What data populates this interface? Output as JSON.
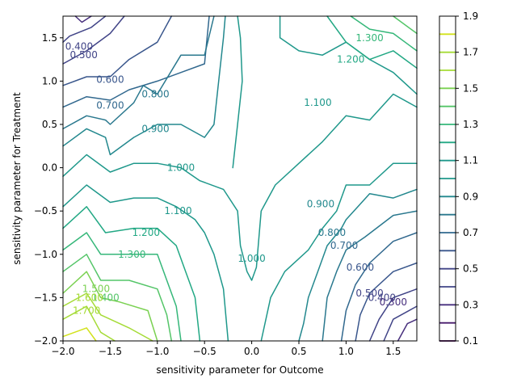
{
  "chart_data": {
    "type": "contour",
    "xlabel": "sensitivity parameter for Outcome",
    "ylabel": "sensitivity parameter for Treatment",
    "xlim": [
      -2.0,
      1.75
    ],
    "ylim": [
      -2.0,
      1.75
    ],
    "x_ticks": [
      {
        "value": -2.0,
        "label": "−2.0"
      },
      {
        "value": -1.5,
        "label": "−1.5"
      },
      {
        "value": -1.0,
        "label": "−1.0"
      },
      {
        "value": -0.5,
        "label": "−0.5"
      },
      {
        "value": 0.0,
        "label": "0.0"
      },
      {
        "value": 0.5,
        "label": "0.5"
      },
      {
        "value": 1.0,
        "label": "1.0"
      },
      {
        "value": 1.5,
        "label": "1.5"
      }
    ],
    "y_ticks": [
      {
        "value": -2.0,
        "label": "−2.0"
      },
      {
        "value": -1.5,
        "label": "−1.5"
      },
      {
        "value": -1.0,
        "label": "−1.0"
      },
      {
        "value": -0.5,
        "label": "−0.5"
      },
      {
        "value": 0.0,
        "label": "0.0"
      },
      {
        "value": 0.5,
        "label": "0.5"
      },
      {
        "value": 1.0,
        "label": "1.0"
      },
      {
        "value": 1.5,
        "label": "1.5"
      }
    ],
    "colormap": "viridis",
    "levels": [
      0.1,
      0.2,
      0.3,
      0.4,
      0.5,
      0.6,
      0.7,
      0.8,
      0.9,
      1.0,
      1.1,
      1.2,
      1.3,
      1.4,
      1.5,
      1.6,
      1.7,
      1.8,
      1.9
    ],
    "level_colors": [
      "#440154",
      "#481a6c",
      "#472f7d",
      "#414487",
      "#39568c",
      "#31688e",
      "#2a788e",
      "#23888e",
      "#1f988b",
      "#22a884",
      "#35b779",
      "#54c568",
      "#7ad151",
      "#a5db36",
      "#d2e21b",
      "#fde725"
    ],
    "colorbar_ticks": [
      {
        "value": 0.1,
        "label": "0.1"
      },
      {
        "value": 0.3,
        "label": "0.3"
      },
      {
        "value": 0.5,
        "label": "0.5"
      },
      {
        "value": 0.7,
        "label": "0.7"
      },
      {
        "value": 0.9,
        "label": "0.9"
      },
      {
        "value": 1.1,
        "label": "1.1"
      },
      {
        "value": 1.3,
        "label": "1.3"
      },
      {
        "value": 1.5,
        "label": "1.5"
      },
      {
        "value": 1.7,
        "label": "1.7"
      },
      {
        "value": 1.9,
        "label": "1.9"
      }
    ],
    "contour_labels": [
      {
        "text": "0.400",
        "x": -1.83,
        "y": 1.4,
        "level": 0.4
      },
      {
        "text": "0.500",
        "x": -1.78,
        "y": 1.3,
        "level": 0.5
      },
      {
        "text": "0.600",
        "x": -1.5,
        "y": 1.02,
        "level": 0.6
      },
      {
        "text": "0.700",
        "x": -1.5,
        "y": 0.72,
        "level": 0.7
      },
      {
        "text": "0.800",
        "x": -1.02,
        "y": 0.85,
        "level": 0.8
      },
      {
        "text": "0.900",
        "x": -1.02,
        "y": 0.45,
        "level": 0.9
      },
      {
        "text": "1.000",
        "x": -0.75,
        "y": 0.0,
        "level": 1.0
      },
      {
        "text": "1.100",
        "x": -0.78,
        "y": -0.5,
        "level": 1.1
      },
      {
        "text": "1.200",
        "x": -1.12,
        "y": -0.75,
        "level": 1.2
      },
      {
        "text": "1.300",
        "x": -1.27,
        "y": -1.0,
        "level": 1.3
      },
      {
        "text": "1.400",
        "x": -1.55,
        "y": -1.5,
        "level": 1.4
      },
      {
        "text": "1.500",
        "x": -1.65,
        "y": -1.4,
        "level": 1.5
      },
      {
        "text": "1.600",
        "x": -1.72,
        "y": -1.5,
        "level": 1.6
      },
      {
        "text": "1.700",
        "x": -1.75,
        "y": -1.65,
        "level": 1.7
      },
      {
        "text": "1.000",
        "x": 0.0,
        "y": -1.05,
        "level": 1.0
      },
      {
        "text": "0.900",
        "x": 0.73,
        "y": -0.42,
        "level": 0.9
      },
      {
        "text": "0.800",
        "x": 0.85,
        "y": -0.75,
        "level": 0.8
      },
      {
        "text": "0.700",
        "x": 0.98,
        "y": -0.9,
        "level": 0.7
      },
      {
        "text": "0.600",
        "x": 1.15,
        "y": -1.15,
        "level": 0.6
      },
      {
        "text": "0.500",
        "x": 1.25,
        "y": -1.45,
        "level": 0.5
      },
      {
        "text": "0.400",
        "x": 1.38,
        "y": -1.5,
        "level": 0.4
      },
      {
        "text": "0.300",
        "x": 1.5,
        "y": -1.55,
        "level": 0.3
      },
      {
        "text": "1.100",
        "x": 0.7,
        "y": 0.75,
        "level": 1.1
      },
      {
        "text": "1.200",
        "x": 1.05,
        "y": 1.25,
        "level": 1.2
      },
      {
        "text": "1.300",
        "x": 1.25,
        "y": 1.5,
        "level": 1.3
      }
    ],
    "contours": [
      {
        "level": 0.3,
        "points": [
          [
            -1.87,
            1.75
          ],
          [
            -1.8,
            1.68
          ],
          [
            -1.7,
            1.75
          ]
        ]
      },
      {
        "level": 0.4,
        "points": [
          [
            -2.0,
            1.45
          ],
          [
            -1.93,
            1.52
          ],
          [
            -1.7,
            1.62
          ],
          [
            -1.55,
            1.75
          ]
        ]
      },
      {
        "level": 0.5,
        "points": [
          [
            -2.0,
            1.2
          ],
          [
            -1.75,
            1.35
          ],
          [
            -1.5,
            1.55
          ],
          [
            -1.35,
            1.75
          ]
        ]
      },
      {
        "level": 0.6,
        "points": [
          [
            -2.0,
            0.95
          ],
          [
            -1.75,
            1.05
          ],
          [
            -1.5,
            1.05
          ],
          [
            -1.3,
            1.25
          ],
          [
            -1.0,
            1.45
          ],
          [
            -0.85,
            1.75
          ]
        ]
      },
      {
        "level": 0.7,
        "points": [
          [
            -2.0,
            0.7
          ],
          [
            -1.75,
            0.82
          ],
          [
            -1.5,
            0.78
          ],
          [
            -1.3,
            0.9
          ],
          [
            -1.0,
            1.0
          ],
          [
            -0.75,
            1.1
          ],
          [
            -0.5,
            1.2
          ],
          [
            -0.45,
            1.75
          ]
        ]
      },
      {
        "level": 0.8,
        "points": [
          [
            -2.0,
            0.45
          ],
          [
            -1.75,
            0.6
          ],
          [
            -1.55,
            0.55
          ],
          [
            -1.5,
            0.5
          ],
          [
            -1.25,
            0.75
          ],
          [
            -1.15,
            0.95
          ],
          [
            -1.0,
            0.85
          ],
          [
            -0.75,
            1.3
          ],
          [
            -0.5,
            1.3
          ],
          [
            -0.4,
            1.75
          ]
        ]
      },
      {
        "level": 0.9,
        "points": [
          [
            -2.0,
            0.25
          ],
          [
            -1.75,
            0.45
          ],
          [
            -1.55,
            0.35
          ],
          [
            -1.5,
            0.15
          ],
          [
            -1.25,
            0.35
          ],
          [
            -1.0,
            0.5
          ],
          [
            -0.75,
            0.5
          ],
          [
            -0.5,
            0.35
          ],
          [
            -0.4,
            0.5
          ],
          [
            -0.35,
            1.0
          ],
          [
            -0.3,
            1.5
          ],
          [
            -0.28,
            1.75
          ]
        ]
      },
      {
        "level": 1.0,
        "points": [
          [
            -2.0,
            -0.1
          ],
          [
            -1.75,
            0.15
          ],
          [
            -1.5,
            -0.05
          ],
          [
            -1.25,
            0.05
          ],
          [
            -1.0,
            0.05
          ],
          [
            -0.75,
            0.0
          ],
          [
            -0.55,
            -0.15
          ],
          [
            -0.3,
            -0.25
          ],
          [
            -0.15,
            -0.5
          ],
          [
            -0.12,
            -0.9
          ],
          [
            -0.05,
            -1.2
          ],
          [
            0.0,
            -1.3
          ],
          [
            0.05,
            -1.15
          ],
          [
            0.1,
            -0.5
          ],
          [
            0.25,
            -0.2
          ],
          [
            0.5,
            0.05
          ],
          [
            0.75,
            0.3
          ],
          [
            1.0,
            0.6
          ],
          [
            1.25,
            0.55
          ],
          [
            1.5,
            0.85
          ],
          [
            1.75,
            0.7
          ]
        ]
      },
      {
        "level": 1.0,
        "points": [
          [
            -0.15,
            1.75
          ],
          [
            -0.12,
            1.5
          ],
          [
            -0.1,
            1.0
          ],
          [
            -0.15,
            0.5
          ],
          [
            -0.2,
            0.0
          ]
        ]
      },
      {
        "level": 1.1,
        "points": [
          [
            -2.0,
            -0.45
          ],
          [
            -1.75,
            -0.2
          ],
          [
            -1.5,
            -0.4
          ],
          [
            -1.25,
            -0.35
          ],
          [
            -1.0,
            -0.35
          ],
          [
            -0.8,
            -0.45
          ],
          [
            -0.6,
            -0.6
          ],
          [
            -0.5,
            -0.75
          ],
          [
            -0.4,
            -1.0
          ],
          [
            -0.3,
            -1.4
          ],
          [
            -0.25,
            -2.0
          ]
        ]
      },
      {
        "level": 1.1,
        "points": [
          [
            0.1,
            -2.0
          ],
          [
            0.2,
            -1.5
          ],
          [
            0.35,
            -1.2
          ],
          [
            0.6,
            -0.95
          ],
          [
            0.75,
            -0.7
          ],
          [
            0.9,
            -0.5
          ],
          [
            1.0,
            -0.2
          ],
          [
            1.25,
            -0.2
          ],
          [
            1.5,
            0.05
          ],
          [
            1.75,
            0.05
          ]
        ]
      },
      {
        "level": 1.1,
        "points": [
          [
            0.3,
            1.75
          ],
          [
            0.3,
            1.5
          ],
          [
            0.5,
            1.35
          ],
          [
            0.75,
            1.3
          ],
          [
            1.0,
            1.45
          ],
          [
            1.25,
            1.25
          ],
          [
            1.5,
            1.1
          ],
          [
            1.75,
            0.85
          ]
        ]
      },
      {
        "level": 1.2,
        "points": [
          [
            -2.0,
            -0.7
          ],
          [
            -1.75,
            -0.45
          ],
          [
            -1.55,
            -0.75
          ],
          [
            -1.25,
            -0.7
          ],
          [
            -1.0,
            -0.7
          ],
          [
            -0.8,
            -0.9
          ],
          [
            -0.7,
            -1.2
          ],
          [
            -0.6,
            -1.5
          ],
          [
            -0.55,
            -2.0
          ]
        ]
      },
      {
        "level": 1.2,
        "points": [
          [
            0.8,
            1.75
          ],
          [
            1.0,
            1.45
          ],
          [
            1.25,
            1.25
          ],
          [
            1.5,
            1.35
          ],
          [
            1.75,
            1.15
          ]
        ]
      },
      {
        "level": 1.3,
        "points": [
          [
            -2.0,
            -0.95
          ],
          [
            -1.75,
            -0.75
          ],
          [
            -1.6,
            -1.0
          ],
          [
            -1.3,
            -1.0
          ],
          [
            -1.0,
            -1.0
          ],
          [
            -0.9,
            -1.3
          ],
          [
            -0.8,
            -1.6
          ],
          [
            -0.75,
            -2.0
          ]
        ]
      },
      {
        "level": 1.3,
        "points": [
          [
            1.05,
            1.75
          ],
          [
            1.25,
            1.6
          ],
          [
            1.5,
            1.55
          ],
          [
            1.75,
            1.35
          ]
        ]
      },
      {
        "level": 1.4,
        "points": [
          [
            -2.0,
            -1.2
          ],
          [
            -1.75,
            -1.0
          ],
          [
            -1.6,
            -1.3
          ],
          [
            -1.3,
            -1.3
          ],
          [
            -1.0,
            -1.4
          ],
          [
            -0.9,
            -1.7
          ],
          [
            -0.85,
            -2.0
          ]
        ]
      },
      {
        "level": 1.4,
        "points": [
          [
            1.5,
            1.75
          ],
          [
            1.75,
            1.55
          ]
        ]
      },
      {
        "level": 1.5,
        "points": [
          [
            -2.0,
            -1.45
          ],
          [
            -1.75,
            -1.2
          ],
          [
            -1.6,
            -1.5
          ],
          [
            -1.4,
            -1.55
          ],
          [
            -1.1,
            -1.65
          ],
          [
            -1.0,
            -2.0
          ]
        ]
      },
      {
        "level": 1.6,
        "points": [
          [
            -2.0,
            -1.6
          ],
          [
            -1.75,
            -1.45
          ],
          [
            -1.6,
            -1.7
          ],
          [
            -1.3,
            -1.85
          ],
          [
            -1.05,
            -2.0
          ]
        ]
      },
      {
        "level": 1.7,
        "points": [
          [
            -2.0,
            -1.75
          ],
          [
            -1.75,
            -1.6
          ],
          [
            -1.6,
            -1.9
          ],
          [
            -1.45,
            -2.0
          ]
        ]
      },
      {
        "level": 1.8,
        "points": [
          [
            -2.0,
            -1.95
          ],
          [
            -1.75,
            -1.85
          ],
          [
            -1.65,
            -2.0
          ]
        ]
      },
      {
        "level": 0.9,
        "points": [
          [
            0.5,
            -2.0
          ],
          [
            0.55,
            -1.8
          ],
          [
            0.6,
            -1.5
          ],
          [
            0.7,
            -1.2
          ],
          [
            0.8,
            -0.9
          ],
          [
            0.95,
            -0.7
          ],
          [
            1.0,
            -0.6
          ],
          [
            1.25,
            -0.3
          ],
          [
            1.5,
            -0.35
          ],
          [
            1.75,
            -0.25
          ]
        ]
      },
      {
        "level": 0.8,
        "points": [
          [
            0.75,
            -2.0
          ],
          [
            0.8,
            -1.5
          ],
          [
            0.9,
            -1.2
          ],
          [
            1.0,
            -0.95
          ],
          [
            1.2,
            -0.8
          ],
          [
            1.5,
            -0.55
          ],
          [
            1.75,
            -0.5
          ]
        ]
      },
      {
        "level": 0.7,
        "points": [
          [
            0.95,
            -2.0
          ],
          [
            1.0,
            -1.65
          ],
          [
            1.1,
            -1.35
          ],
          [
            1.25,
            -1.1
          ],
          [
            1.5,
            -0.85
          ],
          [
            1.75,
            -0.75
          ]
        ]
      },
      {
        "level": 0.6,
        "points": [
          [
            1.1,
            -2.0
          ],
          [
            1.15,
            -1.7
          ],
          [
            1.25,
            -1.45
          ],
          [
            1.5,
            -1.2
          ],
          [
            1.75,
            -1.1
          ]
        ]
      },
      {
        "level": 0.5,
        "points": [
          [
            1.25,
            -2.0
          ],
          [
            1.35,
            -1.75
          ],
          [
            1.5,
            -1.5
          ],
          [
            1.75,
            -1.4
          ]
        ]
      },
      {
        "level": 0.4,
        "points": [
          [
            1.4,
            -2.0
          ],
          [
            1.5,
            -1.75
          ],
          [
            1.75,
            -1.6
          ]
        ]
      },
      {
        "level": 0.3,
        "points": [
          [
            1.55,
            -2.0
          ],
          [
            1.65,
            -1.8
          ],
          [
            1.75,
            -1.75
          ]
        ]
      }
    ]
  }
}
